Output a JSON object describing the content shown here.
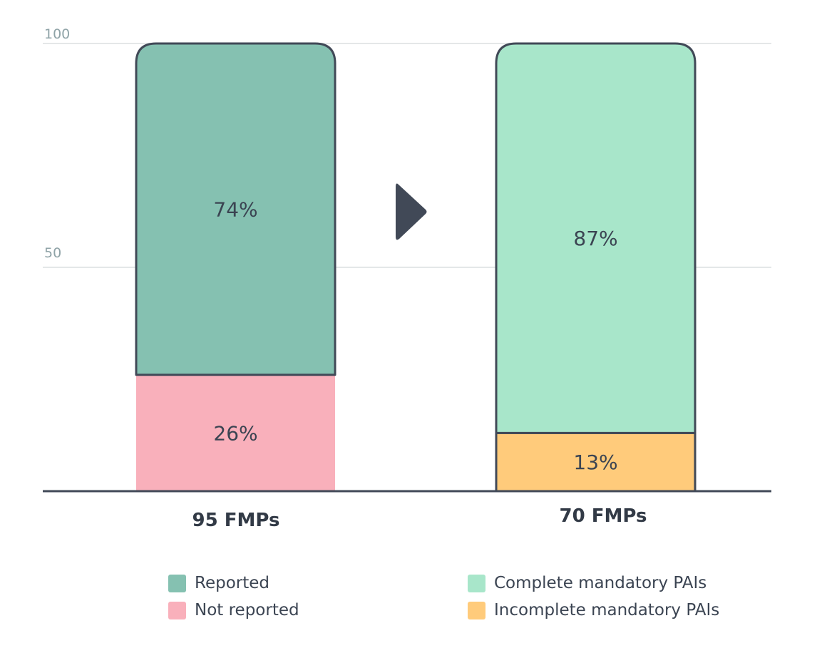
{
  "chart_data": {
    "type": "bar",
    "stacked": true,
    "ylim": [
      0,
      100
    ],
    "yticks": [
      "50",
      "100"
    ],
    "grid": true,
    "categories": [
      "95 FMPs",
      "70 FMPs"
    ],
    "bars": [
      {
        "category": "95 FMPs",
        "segments": [
          {
            "name": "Not reported",
            "value": 26,
            "label": "26%",
            "color": "#f9b0bb"
          },
          {
            "name": "Reported",
            "value": 74,
            "label": "74%",
            "color": "#85c1b1"
          }
        ]
      },
      {
        "category": "70 FMPs",
        "segments": [
          {
            "name": "Incomplete mandatory PAIs",
            "value": 13,
            "label": "13%",
            "color": "#ffcb7b"
          },
          {
            "name": "Complete mandatory PAIs",
            "value": 87,
            "label": "87%",
            "color": "#a8e6ca"
          }
        ]
      }
    ],
    "legend": {
      "placement": "bottom",
      "left": [
        {
          "label": "Reported",
          "color": "#85c1b1"
        },
        {
          "label": "Not reported",
          "color": "#f9b0bb"
        }
      ],
      "right": [
        {
          "label": "Complete mandatory PAIs",
          "color": "#a8e6ca"
        },
        {
          "label": "Incomplete mandatory PAIs",
          "color": "#ffcb7b"
        }
      ]
    }
  },
  "colors": {
    "outline": "#414957",
    "grid": "#dcdfe0",
    "arrow": "#414957"
  },
  "icons": {
    "arrow": "play-triangle-icon"
  }
}
